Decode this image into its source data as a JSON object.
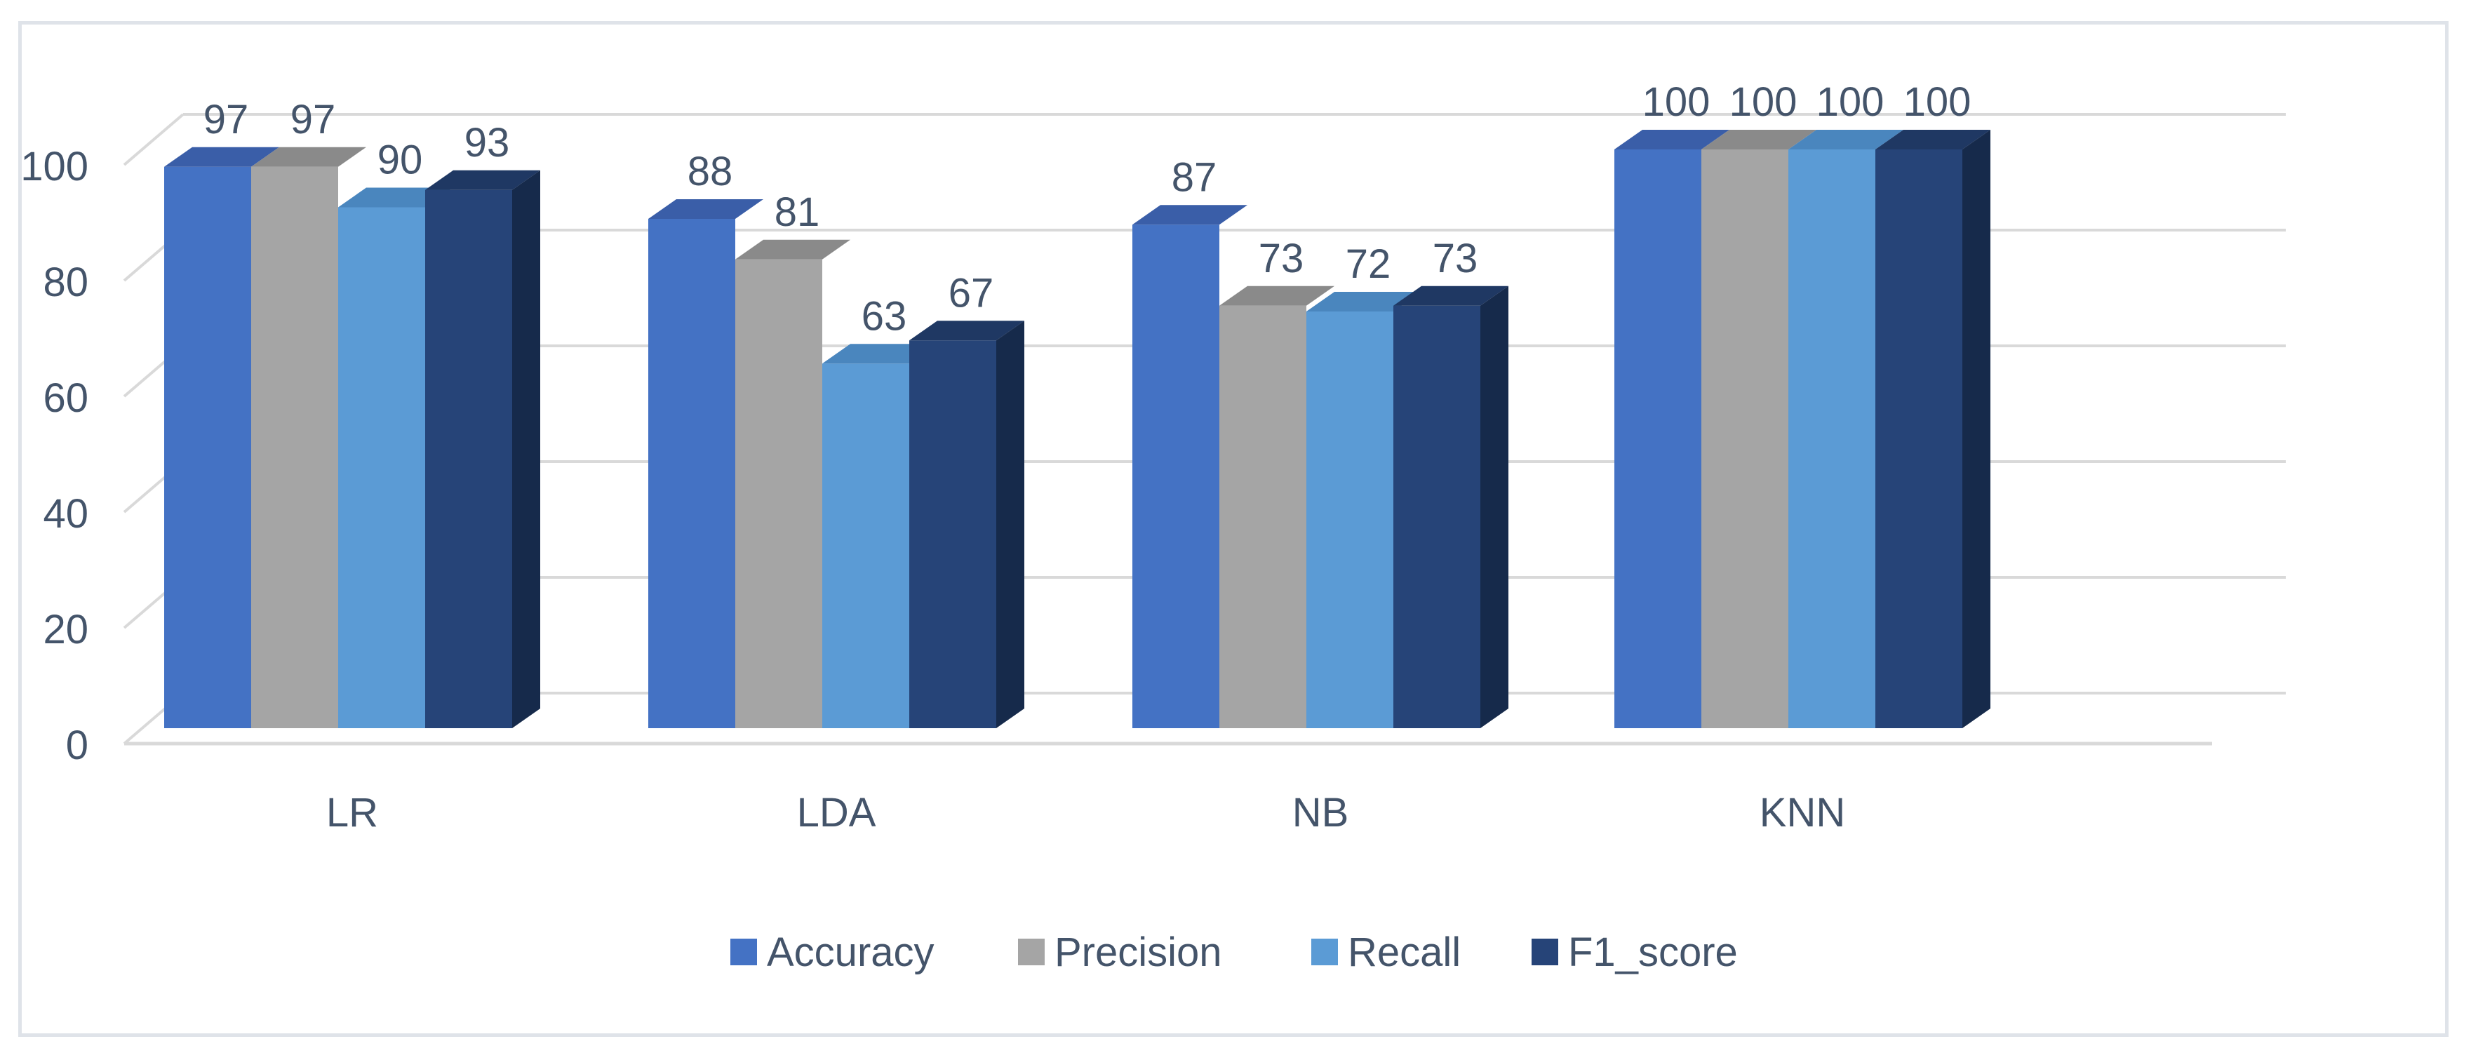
{
  "chart_data": {
    "type": "bar",
    "categories": [
      "LR",
      "LDA",
      "NB",
      "KNN"
    ],
    "series": [
      {
        "name": "Accuracy",
        "values": [
          97,
          88,
          87,
          100
        ],
        "front": "#4472c4",
        "top": "#3a5ea8",
        "side": "#2f4f8f"
      },
      {
        "name": "Precision",
        "values": [
          97,
          81,
          73,
          100
        ],
        "front": "#a5a5a5",
        "top": "#8a8a8a",
        "side": "#777777"
      },
      {
        "name": "Recall",
        "values": [
          90,
          63,
          72,
          100
        ],
        "front": "#5b9bd5",
        "top": "#4a86be",
        "side": "#3e74a7"
      },
      {
        "name": "F1_score",
        "values": [
          93,
          67,
          73,
          100
        ],
        "front": "#264478",
        "top": "#1f3863",
        "side": "#162a4b"
      }
    ],
    "y_ticks": [
      "0",
      "20",
      "40",
      "60",
      "80",
      "100"
    ],
    "ylim": [
      0,
      100
    ],
    "data_labels": [
      [
        "97",
        "88",
        "87",
        "100"
      ],
      [
        "97",
        "81",
        "73",
        "100"
      ],
      [
        "90",
        "63",
        "72",
        "100"
      ],
      [
        "93",
        "67",
        "73",
        "100"
      ]
    ],
    "title": "",
    "xlabel": "",
    "ylabel": "",
    "legend_position": "bottom",
    "grid": true,
    "text_color": "#44546a",
    "grid_color": "#d9d9d9"
  }
}
